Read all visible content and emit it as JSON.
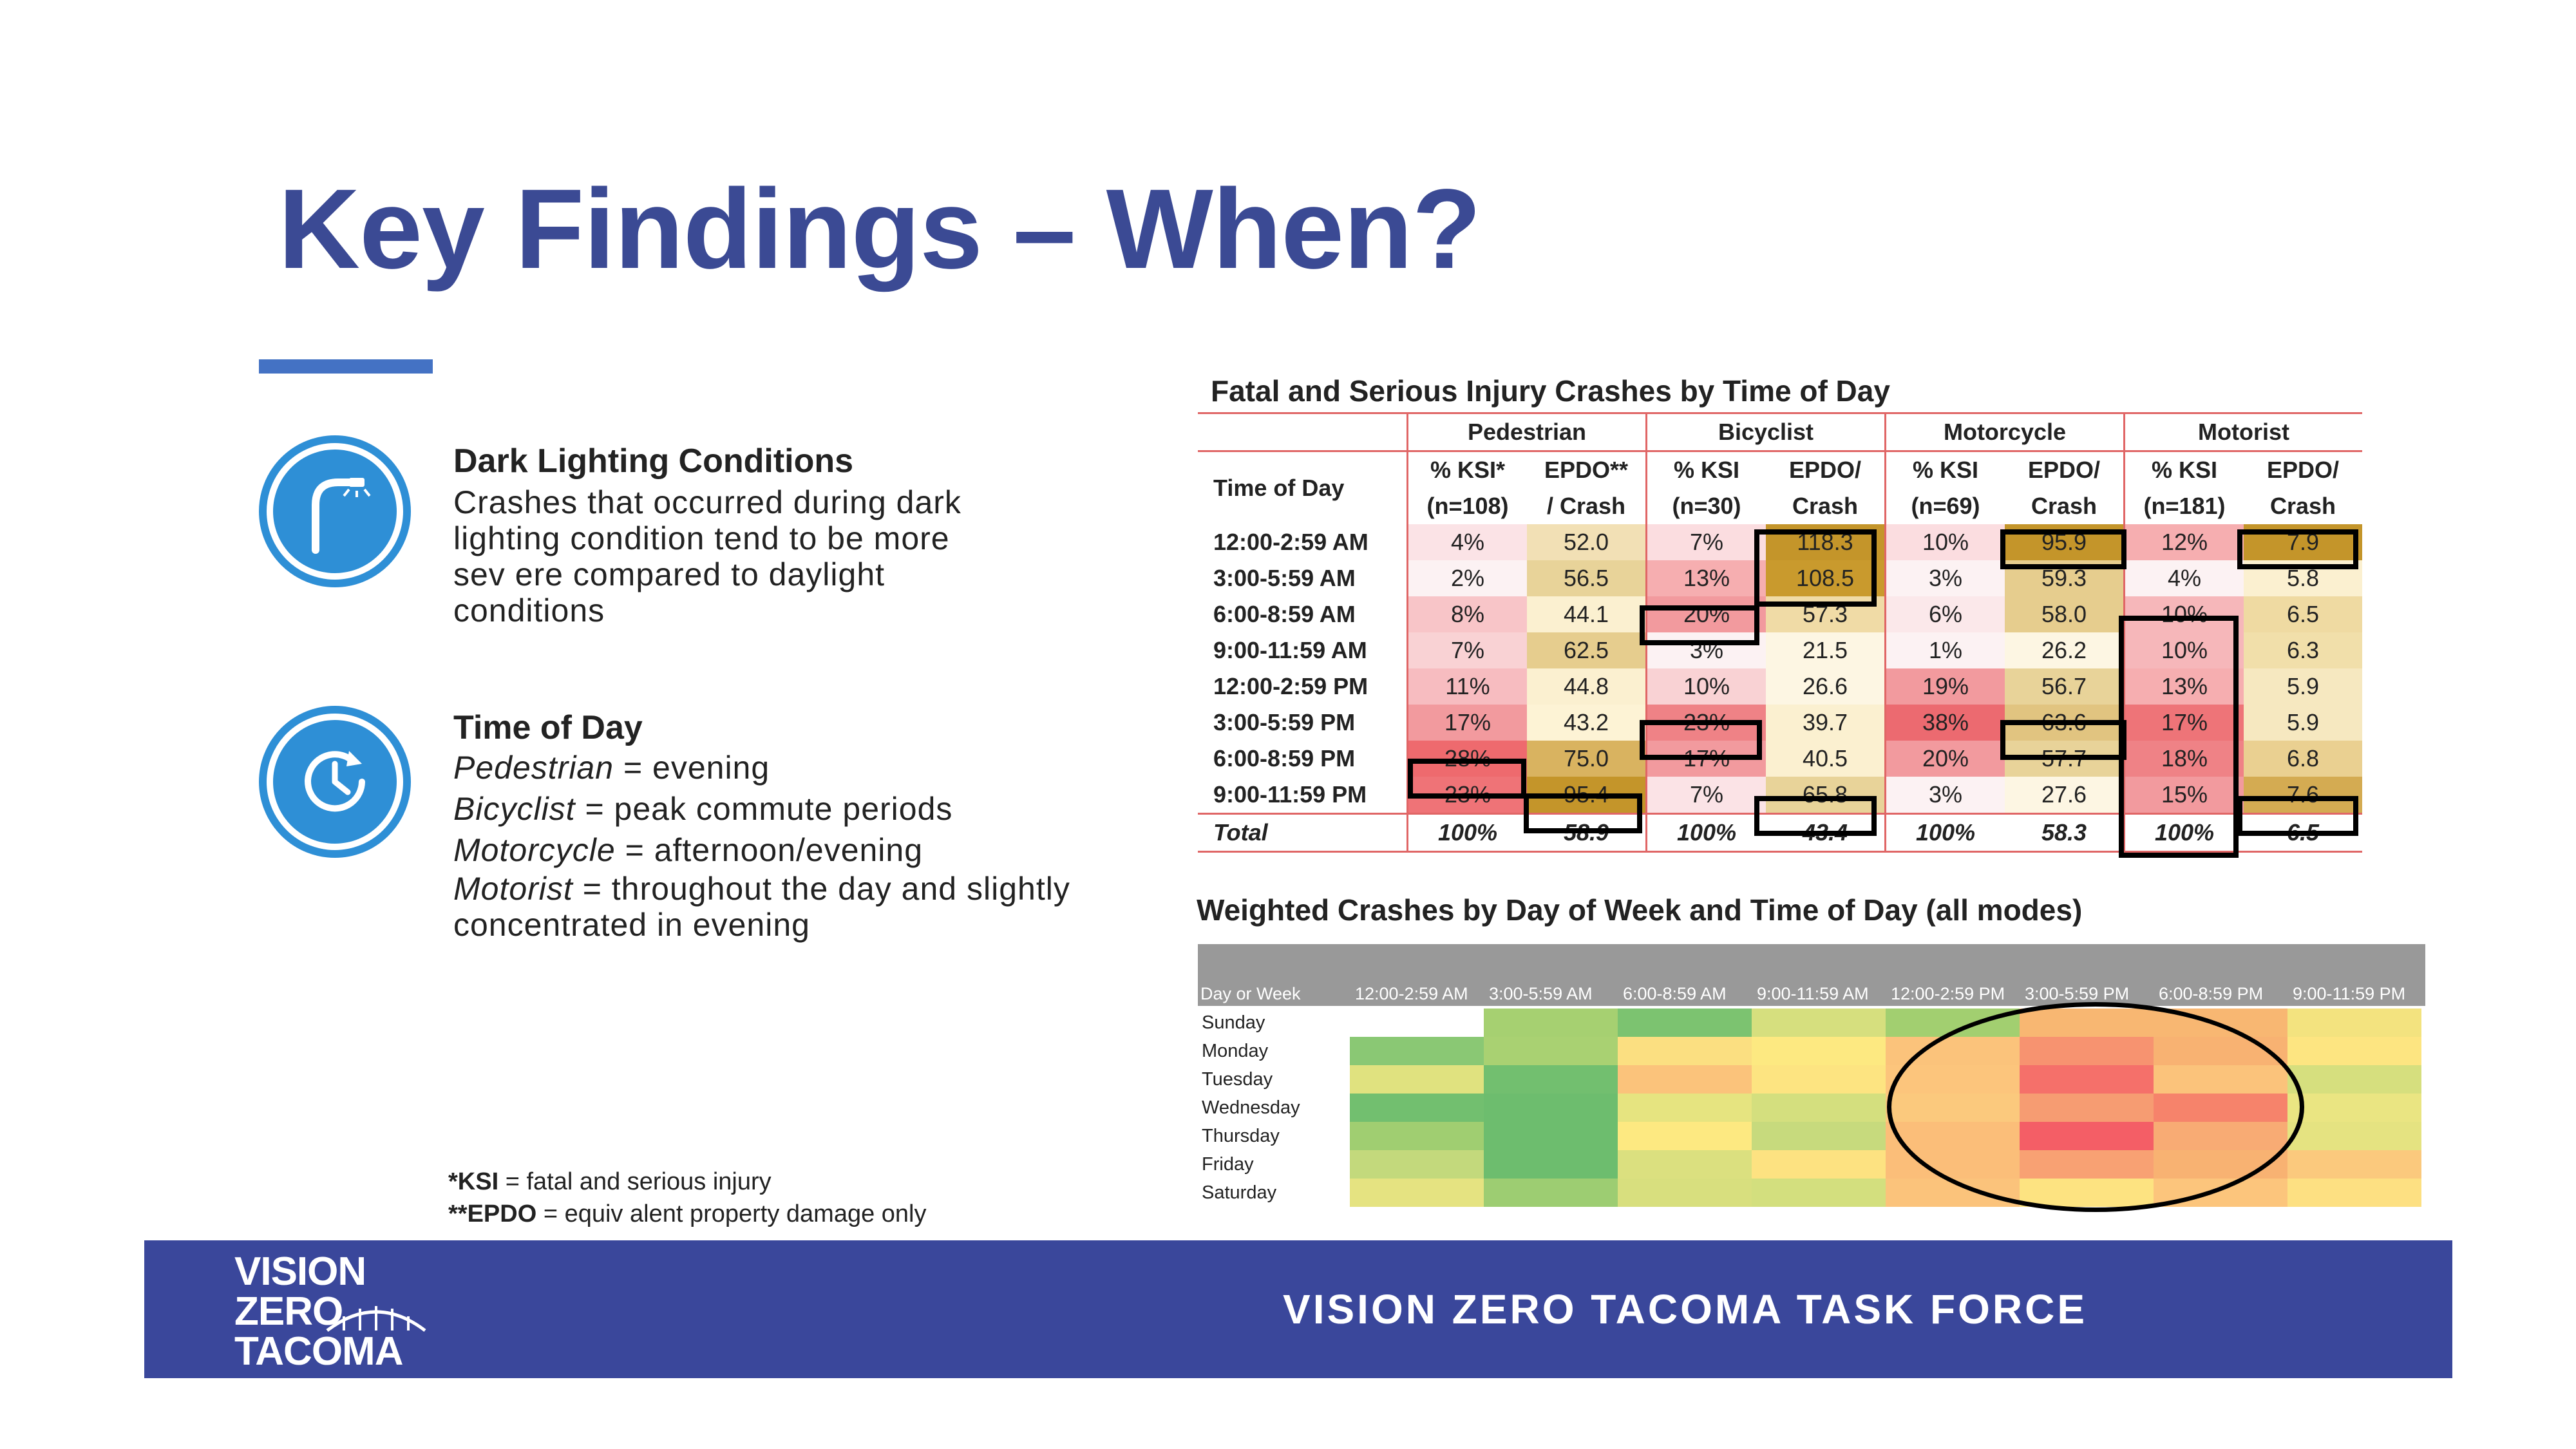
{
  "title": "Key Findings – When?",
  "findings": [
    {
      "icon": "streetlight-icon",
      "heading": "Dark Lighting Conditions",
      "body_lines": [
        "Crashes that occurred during dark",
        "lighting condition tend to be more",
        "sev ere compared to daylight",
        "conditions"
      ]
    },
    {
      "icon": "clock-icon",
      "heading": "Time of Day",
      "modes": [
        {
          "label": "Pedestrian",
          "text": " = evening"
        },
        {
          "label": "Bicyclist",
          "text": " = peak commute  periods"
        },
        {
          "label": "Motorcycle",
          "text": " = afternoon/evening"
        },
        {
          "label": "Motorist",
          "text": " = throughout  the day and slightly"
        }
      ],
      "last_line": "concentrated in evening"
    }
  ],
  "notes": [
    {
      "key": "*KSI",
      "text": " = fatal and serious injury"
    },
    {
      "key": "**EPDO",
      "text": " = equiv alent property damage only"
    }
  ],
  "table1": {
    "title": "Fatal and Serious Injury Crashes by Time of Day",
    "groups": [
      "Pedestrian",
      "Bicyclist",
      "Motorcycle",
      "Motorist"
    ],
    "row_header": "Time of Day",
    "subheaders": [
      [
        "% KSI*",
        "(n=108)",
        "EPDO**",
        "/ Crash"
      ],
      [
        "% KSI",
        "(n=30)",
        "EPDO/",
        "Crash"
      ],
      [
        "% KSI",
        "(n=69)",
        "EPDO/",
        "Crash"
      ],
      [
        "% KSI",
        "(n=181)",
        "EPDO/",
        "Crash"
      ]
    ],
    "rows": [
      {
        "time": "12:00-2:59  AM",
        "vals": [
          "4%",
          "52.0",
          "7%",
          "118.3",
          "10%",
          "95.9",
          "12%",
          "7.9"
        ]
      },
      {
        "time": "3:00-5:59  AM",
        "vals": [
          "2%",
          "56.5",
          "13%",
          "108.5",
          "3%",
          "59.3",
          "4%",
          "5.8"
        ]
      },
      {
        "time": "6:00-8:59  AM",
        "vals": [
          "8%",
          "44.1",
          "20%",
          "57.3",
          "6%",
          "58.0",
          "10%",
          "6.5"
        ]
      },
      {
        "time": "9:00-11:59  AM",
        "vals": [
          "7%",
          "62.5",
          "3%",
          "21.5",
          "1%",
          "26.2",
          "10%",
          "6.3"
        ]
      },
      {
        "time": "12:00-2:59  PM",
        "vals": [
          "11%",
          "44.8",
          "10%",
          "26.6",
          "19%",
          "56.7",
          "13%",
          "5.9"
        ]
      },
      {
        "time": "3:00-5:59  PM",
        "vals": [
          "17%",
          "43.2",
          "23%",
          "39.7",
          "38%",
          "63.6",
          "17%",
          "5.9"
        ]
      },
      {
        "time": "6:00-8:59  PM",
        "vals": [
          "28%",
          "75.0",
          "17%",
          "40.5",
          "20%",
          "57.7",
          "18%",
          "6.8"
        ]
      },
      {
        "time": "9:00-11:59  PM",
        "vals": [
          "23%",
          "95.4",
          "7%",
          "65.8",
          "3%",
          "27.6",
          "15%",
          "7.6"
        ]
      }
    ],
    "total": {
      "label": "Total",
      "vals": [
        "100%",
        "58.9",
        "100%",
        "43.4",
        "100%",
        "58.3",
        "100%",
        "6.5"
      ]
    },
    "colors": [
      [
        "#fbe3e6",
        "#f2e0b5",
        "#fbdde0",
        "#c4952a",
        "#fbdde0",
        "#c4952a",
        "#f6aeb0",
        "#c4952a"
      ],
      [
        "#fcf2f3",
        "#e8d399",
        "#f6aeb0",
        "#c99a2d",
        "#fcf2f3",
        "#e6cd8e",
        "#fcf2f3",
        "#fbf0d0"
      ],
      [
        "#f8c5c8",
        "#fbf0d0",
        "#f29a9e",
        "#f0dba6",
        "#fbe8ea",
        "#e6cd8e",
        "#f6b7ba",
        "#efdaa2"
      ],
      [
        "#f9d2d4",
        "#e6cd8e",
        "#fcf2f3",
        "#fdf6e3",
        "#fcf2f3",
        "#fdf6e3",
        "#f6b7ba",
        "#f1dfaa"
      ],
      [
        "#f7bcc0",
        "#fbf0d0",
        "#f9d2d4",
        "#fdf6e3",
        "#f29a9e",
        "#e8d399",
        "#f6aeb0",
        "#f6e8c0"
      ],
      [
        "#f29a9e",
        "#fdf3d5",
        "#ef8286",
        "#fbf0d0",
        "#ec6a70",
        "#e1c480",
        "#ee7478",
        "#f6e8c0"
      ],
      [
        "#ee6a6e",
        "#d9b360",
        "#f29a9e",
        "#fbf0d0",
        "#f29a9e",
        "#e8d399",
        "#ef8286",
        "#ead091"
      ],
      [
        "#ef7377",
        "#c4952a",
        "#fbe3e6",
        "#e8d399",
        "#fcf2f3",
        "#fdf6e3",
        "#f29a9e",
        "#d4ab52"
      ]
    ]
  },
  "table2": {
    "title": "Weighted Crashes by Day of Week and Time of Day (all modes)",
    "corner": "Day or Week",
    "columns": [
      "12:00-2:59 AM",
      "3:00-5:59 AM",
      "6:00-8:59 AM",
      "9:00-11:59 AM",
      "12:00-2:59 PM",
      "3:00-5:59 PM",
      "6:00-8:59 PM",
      "9:00-11:59 PM"
    ],
    "days": [
      "Sunday",
      "Monday",
      "Tuesday",
      "Wednesday",
      "Thursday",
      "Friday",
      "Saturday"
    ],
    "colors": [
      [
        "#ffffff",
        "#a6d071",
        "#7cc370",
        "#d6df7e",
        "#a2cf70",
        "#f8b772",
        "#f8b772",
        "#f3e37f"
      ],
      [
        "#8ac874",
        "#a9d172",
        "#fbdf81",
        "#fde981",
        "#fbc37b",
        "#f79370",
        "#f8b272",
        "#fde581"
      ],
      [
        "#e0e27f",
        "#72bf6f",
        "#fbc37b",
        "#fde481",
        "#fcc57c",
        "#f5706a",
        "#fbc37b",
        "#d6df7e"
      ],
      [
        "#72bf6f",
        "#6dbd6e",
        "#e6e480",
        "#d4df7e",
        "#fbc97d",
        "#f69c72",
        "#f6836b",
        "#eae582"
      ],
      [
        "#a0ce71",
        "#6dbd6e",
        "#fde981",
        "#c7da7d",
        "#fbbe79",
        "#f45e66",
        "#f8ab74",
        "#e5e381"
      ],
      [
        "#c3d97c",
        "#6dbd6e",
        "#dbe07f",
        "#fde281",
        "#fbbe79",
        "#f8a173",
        "#f8b272",
        "#fbc97d"
      ],
      [
        "#e5e381",
        "#9dcd72",
        "#d8df7e",
        "#d3df7e",
        "#fbc37b",
        "#fde381",
        "#fcc57c",
        "#fde082"
      ]
    ]
  },
  "footer": {
    "logo_lines": [
      "VISION",
      "ZERO",
      "TACOMA"
    ],
    "text": "VISION ZERO TACOMA TASK FORCE"
  }
}
